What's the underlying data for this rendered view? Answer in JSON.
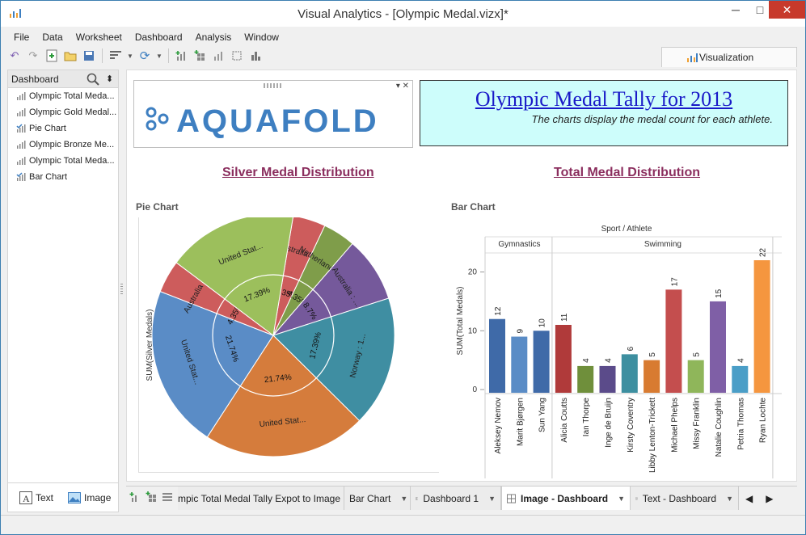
{
  "window": {
    "title": "Visual Analytics - [Olympic Medal.vizx]*",
    "controls": {
      "minimize": "─",
      "maximize": "□",
      "close": "✕"
    }
  },
  "menu": [
    "File",
    "Data",
    "Worksheet",
    "Dashboard",
    "Analysis",
    "Window"
  ],
  "toolbar": {
    "icons": [
      "undo-icon",
      "redo-icon",
      "new-sheet-icon",
      "open-folder-icon",
      "save-icon",
      "data-source-icon",
      "refresh-icon",
      "chart-add-icon",
      "dashboard-add-icon",
      "bar-chart-icon",
      "lasso-icon",
      "sort-icon"
    ]
  },
  "visualization_tab": {
    "label": "Visualization"
  },
  "sidebar": {
    "header": "Dashboard",
    "items": [
      {
        "label": "Olympic Total Meda...",
        "icon": "bar-chart-icon"
      },
      {
        "label": "Olympic Gold Medal...",
        "icon": "bar-chart-icon"
      },
      {
        "label": "Pie Chart",
        "icon": "chart-check-icon"
      },
      {
        "label": "Olympic Bronze Me...",
        "icon": "bar-chart-icon"
      },
      {
        "label": "Olympic Total Meda...",
        "icon": "bar-chart-icon"
      },
      {
        "label": "Bar Chart",
        "icon": "chart-check-icon"
      }
    ],
    "footer": {
      "text_label": "Text",
      "image_label": "Image"
    }
  },
  "dashboard": {
    "logo_text": "AQUAFOLD",
    "title": "Olympic Medal Tally for 2013",
    "subtitle": "The charts display the medal count for each athlete.",
    "left_section_title": "Silver Medal Distribution",
    "right_section_title": "Total Medal Distribution",
    "colors": {
      "title_bg": "#cdfdfb",
      "title_text": "#1919c8",
      "section_title": "#8b2e5e",
      "logo": "#3e7fc1"
    }
  },
  "chart_data": [
    {
      "type": "pie",
      "title": "Pie Chart",
      "ylabel": "SUM(Silver Medals)",
      "slices": [
        {
          "label": "Australia : ...",
          "percent": 4.35,
          "color": "#cd5c5c"
        },
        {
          "label": "Netherlands...",
          "percent": 4.35,
          "color": "#7f9d4a"
        },
        {
          "label": "Australia : ...",
          "percent": 8.7,
          "color": "#75599b"
        },
        {
          "label": "Norway : 1...",
          "percent": 17.39,
          "color": "#3f8ea2"
        },
        {
          "label": "United Stat...",
          "percent": 21.74,
          "color": "#d57c3c"
        },
        {
          "label": "United Stat...",
          "percent": 21.74,
          "color": "#5a8cc6"
        },
        {
          "label": "Australia : ...",
          "percent": 4.35,
          "color": "#cd5c5c"
        },
        {
          "label": "United Stat...",
          "percent": 17.39,
          "color": "#9cbf5c"
        }
      ]
    },
    {
      "type": "bar",
      "title": "Bar Chart",
      "header": "Sport / Athlete",
      "ylabel": "SUM(Total Medals)",
      "ylim": [
        0,
        22
      ],
      "yticks": [
        0,
        10,
        20
      ],
      "groups": [
        {
          "name": "Gymnastics",
          "athletes": [
            "Aleksey Nemov",
            "Marit Bjørgen",
            "Sun Yang"
          ],
          "values": [
            12,
            9,
            10
          ],
          "colors": [
            "#3f6aa8",
            "#5a8cc6",
            "#3f6aa8"
          ]
        },
        {
          "name": "Swimming",
          "athletes": [
            "Alicia Coutts",
            "Ian Thorpe",
            "Inge de Bruijn",
            "Kirsty Coventry",
            "Libby Lenton-Trickett",
            "Michael Phelps",
            "Missy Franklin",
            "Natalie Coughlin",
            "Petria Thomas",
            "Ryan Lochte"
          ],
          "values": [
            11,
            4,
            4,
            6,
            5,
            17,
            5,
            15,
            4,
            22
          ],
          "colors": [
            "#b03a3a",
            "#6f8f3b",
            "#5b4b8a",
            "#3d8fa0",
            "#d87b31",
            "#c44e4e",
            "#8fb65a",
            "#7f5fa6",
            "#4a9ec7",
            "#f5963f"
          ]
        }
      ]
    }
  ],
  "tabs": [
    {
      "label": "mpic Total Medal Tally Expot to Image",
      "active": false,
      "icon": ""
    },
    {
      "label": "Bar Chart",
      "active": false,
      "icon": ""
    },
    {
      "label": "Dashboard 1",
      "active": false,
      "icon": "dashboard-grid-icon"
    },
    {
      "label": "Image - Dashboard",
      "active": true,
      "icon": "dashboard-grid-icon"
    },
    {
      "label": "Text - Dashboard",
      "active": false,
      "icon": "dashboard-grid-icon"
    }
  ]
}
